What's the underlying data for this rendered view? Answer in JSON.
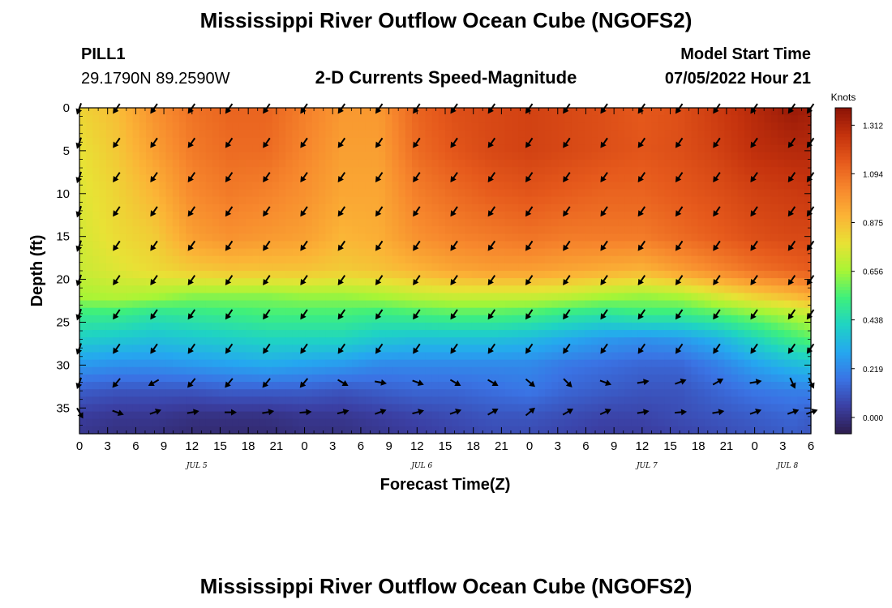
{
  "page": {
    "title": "Mississippi River Outflow Ocean Cube (NGOFS2)",
    "repeat_title": "Mississippi River Outflow Ocean Cube (NGOFS2)",
    "station_name": "PILL1",
    "station_coords": "29.1790N  89.2590W",
    "subtitle": "2-D Currents Speed-Magnitude",
    "model_start_label": "Model Start Time",
    "model_start_value": "07/05/2022 Hour 21"
  },
  "chart_data": {
    "type": "heatmap",
    "xlabel": "Forecast Time(Z)",
    "ylabel": "Depth (ft)",
    "x_range_hours": [
      0,
      78
    ],
    "y_range_ft": [
      0,
      38
    ],
    "y_inverted": true,
    "x_tick_labels": [
      "0",
      "3",
      "6",
      "9",
      "12",
      "15",
      "18",
      "21",
      "0",
      "3",
      "6",
      "9",
      "12",
      "15",
      "18",
      "21",
      "0",
      "3",
      "6",
      "9",
      "12",
      "15",
      "18",
      "21",
      "0",
      "3",
      "6"
    ],
    "y_tick_labels": [
      "0",
      "5",
      "10",
      "15",
      "20",
      "25",
      "30",
      "35"
    ],
    "y_tick_values": [
      0,
      5,
      10,
      15,
      20,
      25,
      30,
      35
    ],
    "date_labels": [
      {
        "text": "JUL 5",
        "hour": 12
      },
      {
        "text": "JUL 6",
        "hour": 36
      },
      {
        "text": "JUL 7",
        "hour": 60
      },
      {
        "text": "JUL 8",
        "hour": 75
      }
    ],
    "colorbar": {
      "unit": "Knots",
      "min": -0.073,
      "max": 1.39,
      "tick_labels": [
        "0.000",
        "0.219",
        "0.438",
        "0.656",
        "0.875",
        "1.094",
        "1.312"
      ],
      "tick_values": [
        0,
        0.219,
        0.438,
        0.656,
        0.875,
        1.094,
        1.312
      ],
      "colors": [
        "#2d1d4e",
        "#3b3fa3",
        "#3a73e4",
        "#25a7f0",
        "#1fd3c4",
        "#3ef07c",
        "#a8f535",
        "#e8e235",
        "#fbb436",
        "#f7882d",
        "#e65a1c",
        "#c4320d",
        "#8b1206"
      ]
    },
    "speed_anchor_depths_ft": [
      0,
      5,
      10,
      15,
      19,
      22,
      24,
      27,
      30,
      33,
      36,
      38
    ],
    "speed_anchor_hours": [
      0,
      4,
      8,
      12,
      16,
      20,
      24,
      28,
      32,
      36,
      40,
      44,
      48,
      52,
      56,
      60,
      64,
      68,
      72,
      76,
      78
    ],
    "speed_knots": [
      [
        0.82,
        0.88,
        1.0,
        1.08,
        1.12,
        1.12,
        1.05,
        0.98,
        0.98,
        1.12,
        1.18,
        1.2,
        1.22,
        1.2,
        1.18,
        1.15,
        1.18,
        1.24,
        1.3,
        1.36,
        1.34
      ],
      [
        0.78,
        0.85,
        0.96,
        1.06,
        1.1,
        1.1,
        1.03,
        0.96,
        0.96,
        1.1,
        1.16,
        1.2,
        1.22,
        1.2,
        1.18,
        1.16,
        1.18,
        1.22,
        1.28,
        1.3,
        1.3
      ],
      [
        0.76,
        0.82,
        0.9,
        1.02,
        1.06,
        1.04,
        1.0,
        0.94,
        0.94,
        1.05,
        1.1,
        1.14,
        1.16,
        1.14,
        1.12,
        1.12,
        1.15,
        1.18,
        1.22,
        1.24,
        1.25
      ],
      [
        0.74,
        0.8,
        0.84,
        0.96,
        1.0,
        0.98,
        0.96,
        0.9,
        0.92,
        1.0,
        1.04,
        1.06,
        1.08,
        1.06,
        1.06,
        1.06,
        1.1,
        1.14,
        1.18,
        1.2,
        1.2
      ],
      [
        0.72,
        0.76,
        0.8,
        0.84,
        0.86,
        0.86,
        0.86,
        0.84,
        0.86,
        0.9,
        0.94,
        0.96,
        0.96,
        0.94,
        0.92,
        0.9,
        0.96,
        1.02,
        1.08,
        1.12,
        1.14
      ],
      [
        0.66,
        0.68,
        0.66,
        0.62,
        0.62,
        0.62,
        0.64,
        0.64,
        0.66,
        0.7,
        0.72,
        0.72,
        0.72,
        0.7,
        0.66,
        0.64,
        0.66,
        0.74,
        0.82,
        0.88,
        0.92
      ],
      [
        0.52,
        0.52,
        0.48,
        0.5,
        0.52,
        0.54,
        0.54,
        0.54,
        0.52,
        0.54,
        0.56,
        0.56,
        0.54,
        0.5,
        0.48,
        0.52,
        0.52,
        0.56,
        0.62,
        0.68,
        0.72
      ],
      [
        0.4,
        0.38,
        0.36,
        0.38,
        0.4,
        0.42,
        0.42,
        0.42,
        0.38,
        0.36,
        0.36,
        0.36,
        0.34,
        0.3,
        0.26,
        0.24,
        0.26,
        0.32,
        0.42,
        0.52,
        0.56
      ],
      [
        0.26,
        0.24,
        0.24,
        0.26,
        0.28,
        0.3,
        0.28,
        0.26,
        0.22,
        0.22,
        0.22,
        0.22,
        0.22,
        0.18,
        0.16,
        0.14,
        0.14,
        0.2,
        0.28,
        0.34,
        0.36
      ],
      [
        0.12,
        0.1,
        0.1,
        0.1,
        0.12,
        0.12,
        0.12,
        0.1,
        0.12,
        0.14,
        0.14,
        0.16,
        0.18,
        0.14,
        0.12,
        0.1,
        0.1,
        0.14,
        0.18,
        0.2,
        0.2
      ],
      [
        0.04,
        0.02,
        0.02,
        0.0,
        0.0,
        0.0,
        0.02,
        0.02,
        0.04,
        0.06,
        0.08,
        0.1,
        0.1,
        0.08,
        0.06,
        0.06,
        0.08,
        0.1,
        0.12,
        0.14,
        0.12
      ],
      [
        0.02,
        0.0,
        0.0,
        -0.02,
        -0.02,
        -0.02,
        0.0,
        0.0,
        0.02,
        0.04,
        0.06,
        0.08,
        0.08,
        0.06,
        0.04,
        0.04,
        0.06,
        0.08,
        0.1,
        0.12,
        0.1
      ]
    ],
    "vector_hours": [
      0,
      4,
      8,
      12,
      16,
      20,
      24,
      28,
      32,
      36,
      40,
      44,
      48,
      52,
      56,
      60,
      64,
      68,
      72,
      76,
      78
    ],
    "vector_depths_ft": [
      0,
      4,
      8,
      12,
      16,
      20,
      24,
      28,
      32,
      35.5
    ],
    "vector_angle_deg_top": 125,
    "vector_rows_angle_deg": [
      [
        110,
        125,
        125,
        125,
        125,
        125,
        125,
        125,
        125,
        125,
        125,
        125,
        125,
        125,
        125,
        125,
        125,
        125,
        125,
        125,
        125
      ],
      [
        110,
        125,
        125,
        125,
        125,
        125,
        125,
        125,
        125,
        125,
        125,
        125,
        125,
        125,
        125,
        125,
        125,
        125,
        125,
        125,
        125
      ],
      [
        110,
        125,
        125,
        125,
        125,
        125,
        125,
        125,
        125,
        125,
        125,
        125,
        125,
        125,
        125,
        125,
        125,
        125,
        125,
        125,
        125
      ],
      [
        110,
        125,
        125,
        125,
        125,
        125,
        125,
        125,
        125,
        125,
        125,
        125,
        125,
        125,
        125,
        125,
        125,
        125,
        125,
        125,
        125
      ],
      [
        110,
        125,
        125,
        125,
        125,
        125,
        125,
        125,
        125,
        125,
        125,
        125,
        125,
        125,
        125,
        125,
        125,
        125,
        125,
        125,
        125
      ],
      [
        110,
        125,
        125,
        125,
        125,
        125,
        125,
        125,
        125,
        125,
        125,
        125,
        125,
        125,
        125,
        125,
        125,
        125,
        125,
        125,
        125
      ],
      [
        110,
        125,
        125,
        125,
        125,
        125,
        125,
        125,
        125,
        125,
        125,
        125,
        125,
        125,
        125,
        125,
        125,
        125,
        125,
        125,
        125
      ],
      [
        110,
        125,
        125,
        125,
        125,
        125,
        125,
        125,
        125,
        125,
        125,
        125,
        125,
        125,
        125,
        125,
        125,
        125,
        125,
        125,
        125
      ],
      [
        110,
        130,
        150,
        130,
        130,
        130,
        130,
        30,
        10,
        20,
        30,
        30,
        40,
        45,
        20,
        -10,
        -20,
        -30,
        -10,
        65,
        65
      ],
      [
        60,
        20,
        -20,
        -10,
        0,
        -10,
        -5,
        -15,
        -20,
        -15,
        -20,
        -30,
        -40,
        -30,
        -25,
        -10,
        -5,
        -10,
        -20,
        -20,
        -20
      ]
    ]
  }
}
